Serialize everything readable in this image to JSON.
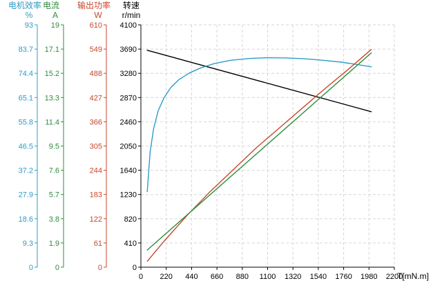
{
  "chart_data": {
    "type": "line",
    "xlabel": "T[mN.m]",
    "xlim": [
      0,
      2200
    ],
    "x_ticks": [
      0,
      220,
      440,
      660,
      880,
      1100,
      1320,
      1540,
      1760,
      1980,
      2200
    ],
    "grid": true,
    "axes": [
      {
        "key": "efficiency",
        "title": "电机效率",
        "unit": "%",
        "color": "#2e9bc6",
        "range": [
          0,
          93
        ],
        "ticks": [
          "0",
          "9.3",
          "18.6",
          "27.9",
          "37.2",
          "46.5",
          "55.8",
          "65.1",
          "74.4",
          "83.7",
          "93"
        ]
      },
      {
        "key": "current",
        "title": "电流",
        "unit": "A",
        "color": "#2e8b3e",
        "range": [
          0,
          19
        ],
        "ticks": [
          "0",
          "1.9",
          "3.8",
          "5.7",
          "7.6",
          "9.5",
          "11.4",
          "13.3",
          "15.2",
          "17.1",
          "19"
        ]
      },
      {
        "key": "power",
        "title": "输出功率",
        "unit": "W",
        "color": "#c8462a",
        "range": [
          0,
          610
        ],
        "ticks": [
          "0",
          "61",
          "122",
          "183",
          "244",
          "305",
          "366",
          "427",
          "488",
          "549",
          "610"
        ]
      },
      {
        "key": "speed",
        "title": "转速",
        "unit": "r/min",
        "color": "#000000",
        "range": [
          0,
          4100
        ],
        "ticks": [
          "0",
          "410",
          "820",
          "1230",
          "1640",
          "2050",
          "2460",
          "2870",
          "3280",
          "3690",
          "4100"
        ]
      }
    ],
    "series": [
      {
        "key": "speed",
        "axis": "speed",
        "color": "#000000",
        "x": [
          55,
          2000
        ],
        "y": [
          3670,
          2630
        ]
      },
      {
        "key": "efficiency",
        "axis": "efficiency",
        "color": "#2e9bc6",
        "x": [
          55,
          80,
          110,
          150,
          200,
          260,
          330,
          420,
          520,
          640,
          780,
          940,
          1100,
          1260,
          1420,
          1580,
          1740,
          1900,
          2000
        ],
        "y": [
          29,
          44,
          53,
          60,
          65,
          69,
          72,
          74.5,
          76.5,
          78.2,
          79.4,
          80.1,
          80.4,
          80.3,
          80,
          79.4,
          78.7,
          77.6,
          76.9
        ]
      },
      {
        "key": "power",
        "axis": "power",
        "color": "#c8462a",
        "x": [
          55,
          200,
          400,
          600,
          800,
          1000,
          1200,
          1400,
          1600,
          1800,
          2000
        ],
        "y": [
          15,
          65,
          130,
          190,
          245,
          300,
          350,
          400,
          450,
          498,
          548
        ]
      },
      {
        "key": "current",
        "axis": "current",
        "color": "#2e8b3e",
        "x": [
          55,
          2000
        ],
        "y": [
          1.35,
          16.8
        ]
      }
    ]
  }
}
